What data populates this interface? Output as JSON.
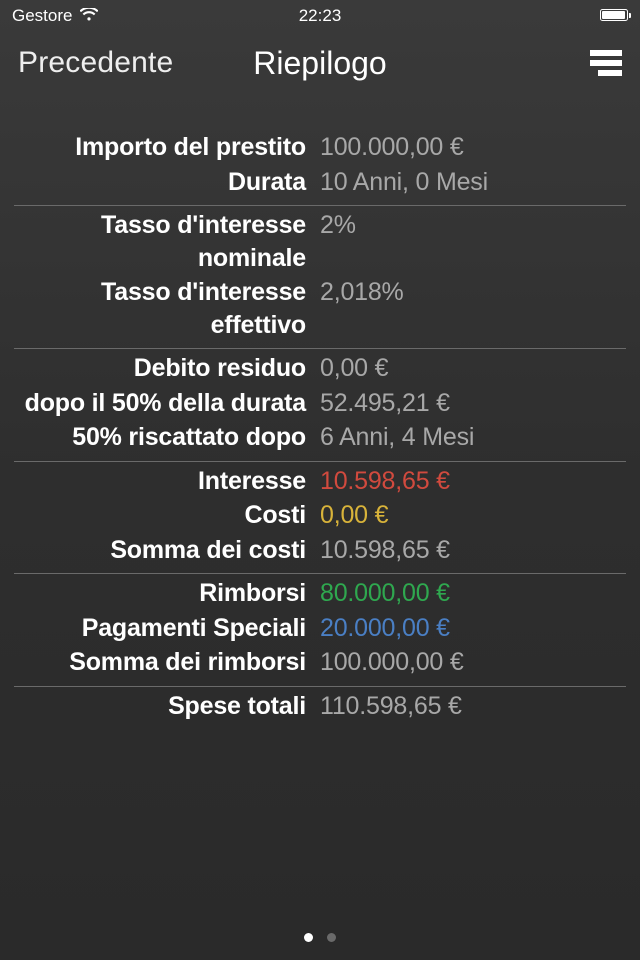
{
  "status_bar": {
    "carrier": "Gestore",
    "time": "22:23"
  },
  "nav": {
    "back": "Precedente",
    "title": "Riepilogo"
  },
  "colors": {
    "default_value": "#a8a8a8",
    "red": "#d14a3e",
    "yellow": "#d8b33a",
    "green": "#2fa84f",
    "blue": "#4a7fc4"
  },
  "sections": [
    {
      "rows": [
        {
          "label": "Importo del prestito",
          "value": "100.000,00 €",
          "color": "default_value"
        },
        {
          "label": "Durata",
          "value": "10 Anni, 0 Mesi",
          "color": "default_value"
        }
      ]
    },
    {
      "rows": [
        {
          "label": "Tasso d'interesse nominale",
          "value": "2%",
          "color": "default_value"
        },
        {
          "label": "Tasso d'interesse effettivo",
          "value": "2,018%",
          "color": "default_value"
        }
      ]
    },
    {
      "rows": [
        {
          "label": "Debito residuo",
          "value": "0,00 €",
          "color": "default_value"
        },
        {
          "label": "dopo il 50% della durata",
          "value": "52.495,21 €",
          "color": "default_value"
        },
        {
          "label": "50% riscattato dopo",
          "value": "6 Anni, 4 Mesi",
          "color": "default_value"
        }
      ]
    },
    {
      "rows": [
        {
          "label": "Interesse",
          "value": "10.598,65 €",
          "color": "red"
        },
        {
          "label": "Costi",
          "value": "0,00 €",
          "color": "yellow"
        },
        {
          "label": "Somma dei costi",
          "value": "10.598,65 €",
          "color": "default_value"
        }
      ]
    },
    {
      "rows": [
        {
          "label": "Rimborsi",
          "value": "80.000,00 €",
          "color": "green"
        },
        {
          "label": "Pagamenti Speciali",
          "value": "20.000,00 €",
          "color": "blue"
        },
        {
          "label": "Somma dei rimborsi",
          "value": "100.000,00 €",
          "color": "default_value"
        }
      ]
    },
    {
      "rows": [
        {
          "label": "Spese totali",
          "value": "110.598,65 €",
          "color": "default_value"
        }
      ]
    }
  ],
  "pagination": {
    "count": 2,
    "active": 0
  }
}
